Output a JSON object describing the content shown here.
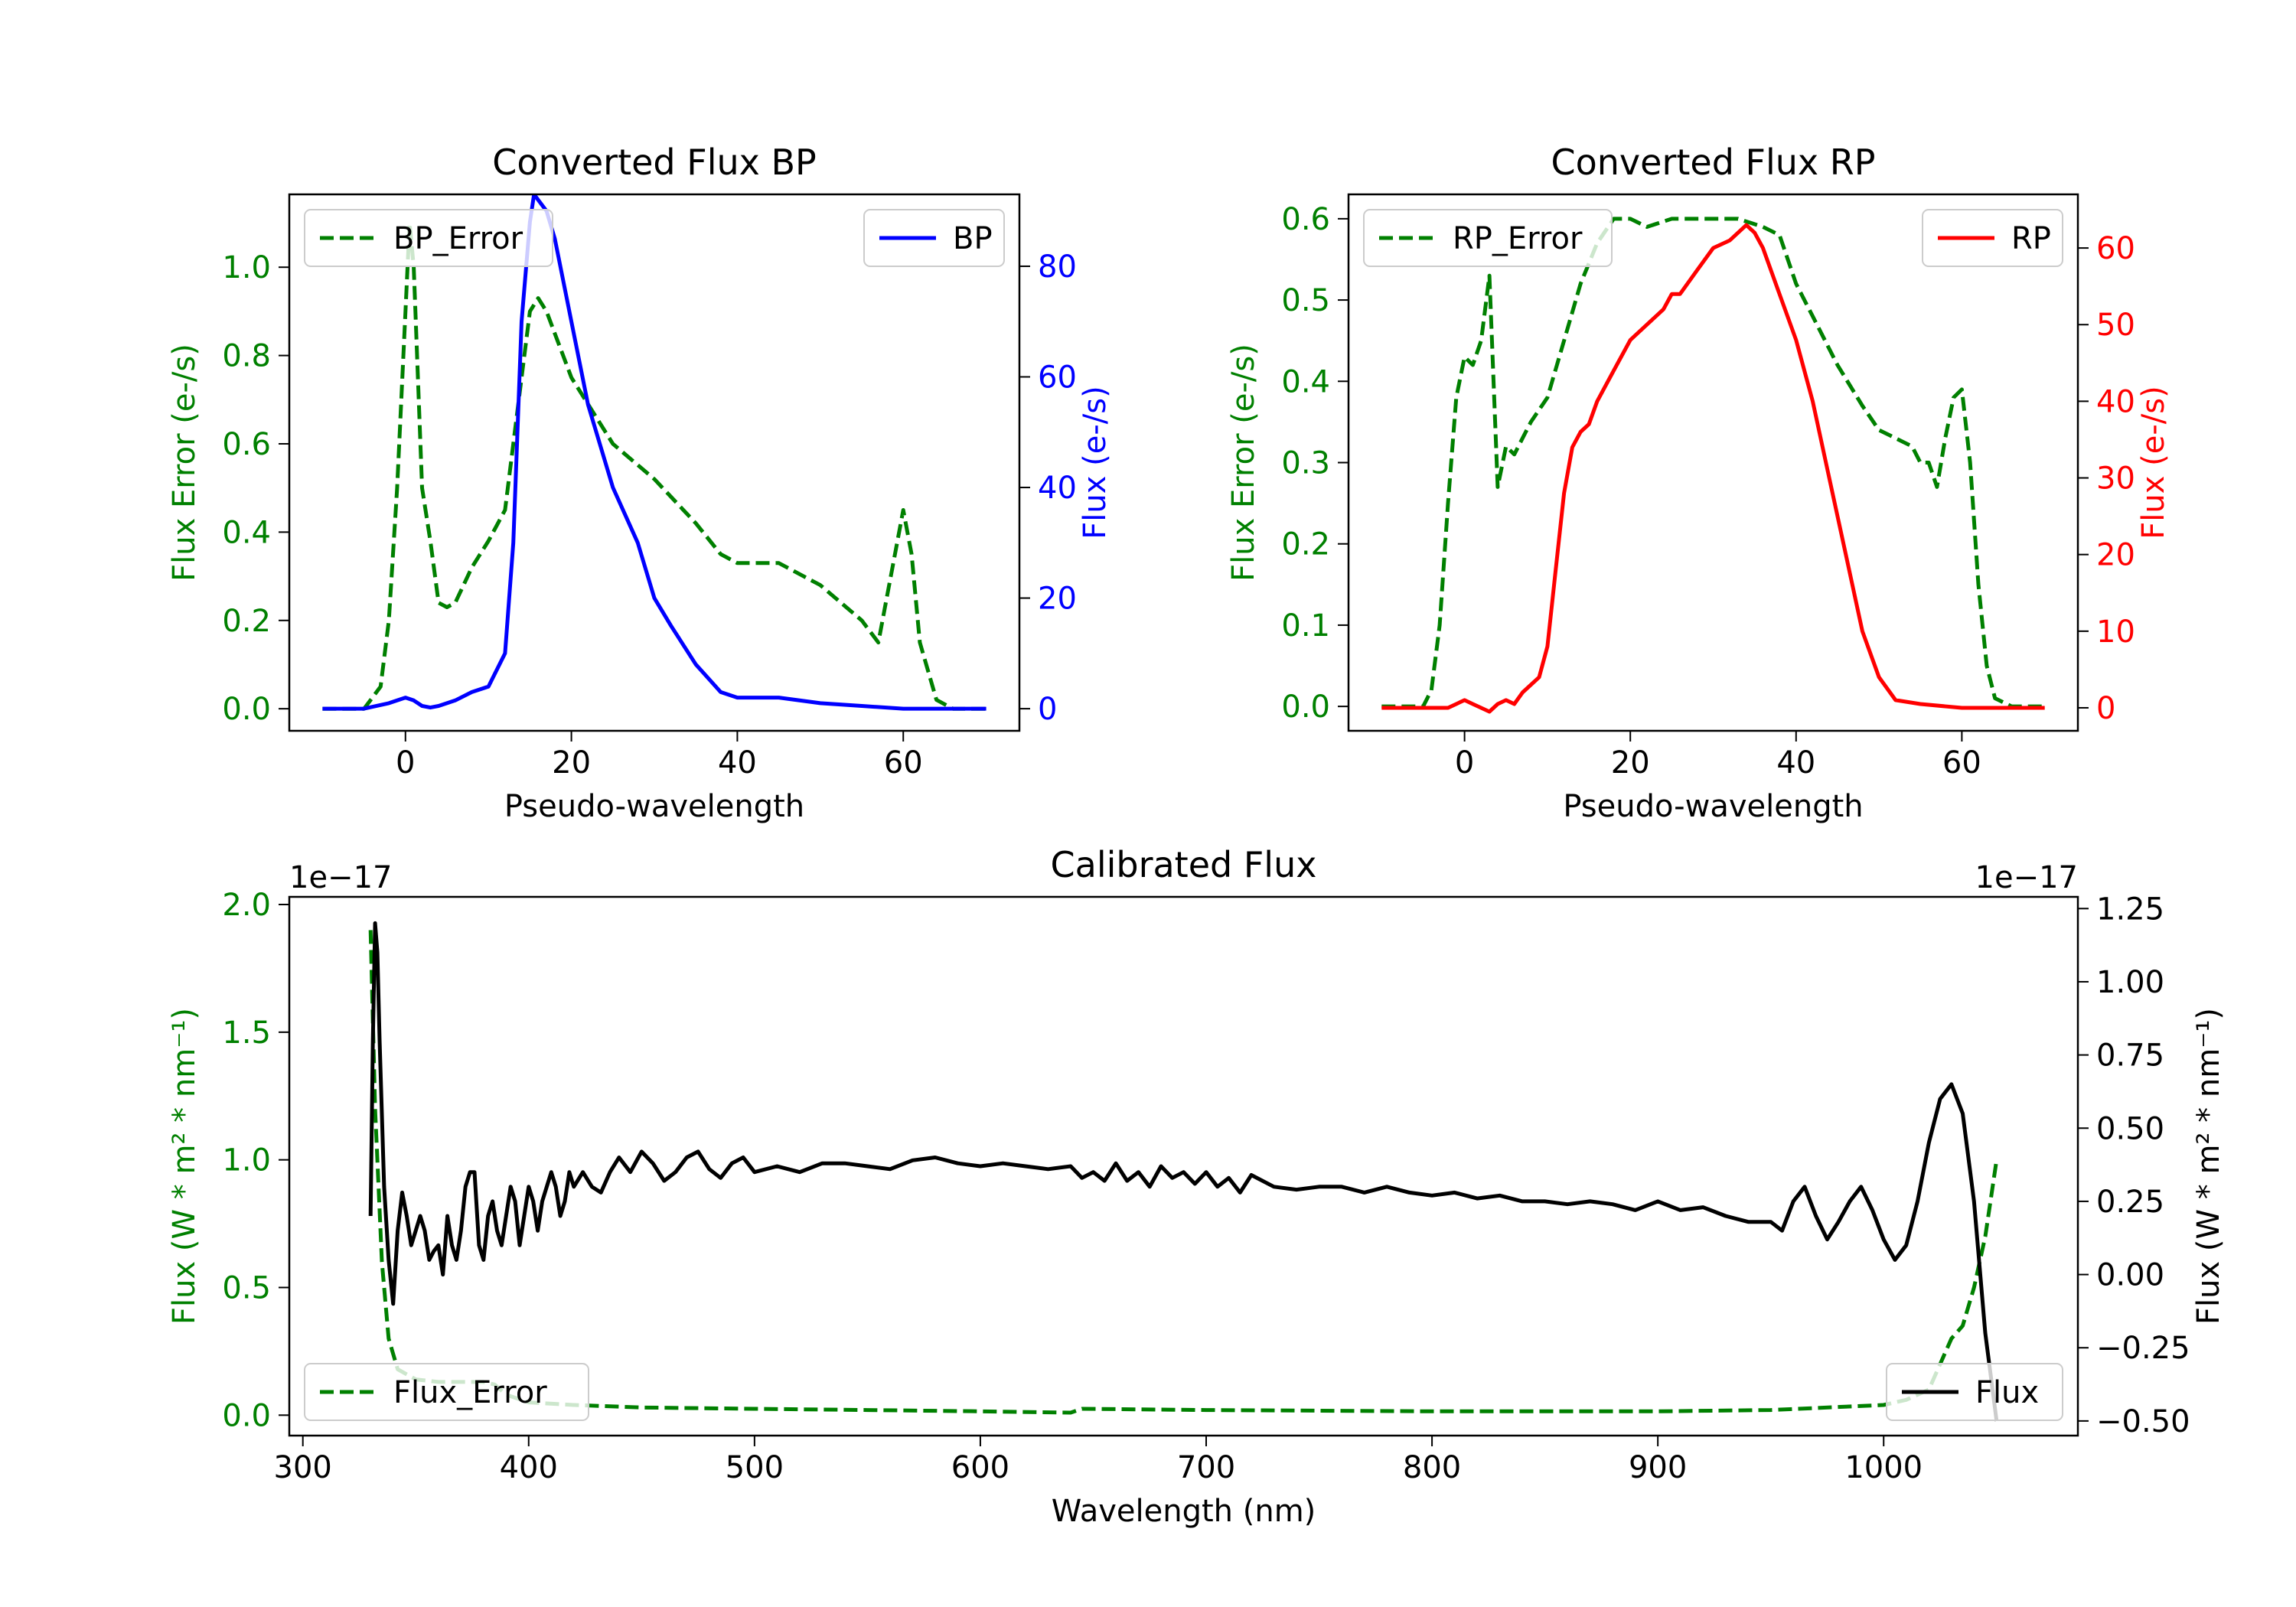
{
  "chart_data": [
    {
      "type": "line",
      "title": "Converted Flux BP",
      "xlabel": "Pseudo-wavelength",
      "ylabel_left": "Flux Error (e-/s)",
      "ylabel_right": "Flux (e-/s)",
      "xlim": [
        -14,
        74
      ],
      "ylim_left": [
        -0.05,
        1.165
      ],
      "ylim_right": [
        -4,
        93
      ],
      "xticks": [
        "0",
        "20",
        "40",
        "60"
      ],
      "yticks_left": [
        "0.0",
        "0.2",
        "0.4",
        "0.6",
        "0.8",
        "1.0"
      ],
      "yticks_right": [
        "0",
        "20",
        "40",
        "60",
        "80"
      ],
      "legend_left_position": "upper left",
      "legend_right_position": "upper right",
      "series": [
        {
          "name": "BP_Error",
          "axis": "left",
          "style": "dashed",
          "color": "#008000",
          "x": [
            -10,
            -5,
            -3,
            -2,
            -1,
            0,
            0.5,
            1,
            2,
            3,
            4,
            5,
            6,
            7,
            8,
            10,
            12,
            14,
            15,
            16,
            17,
            18,
            20,
            22,
            25,
            30,
            35,
            38,
            40,
            45,
            50,
            55,
            57,
            58,
            59,
            60,
            61,
            62,
            64,
            66,
            70
          ],
          "y": [
            0.0,
            0.0,
            0.05,
            0.2,
            0.5,
            0.9,
            1.1,
            1.0,
            0.5,
            0.38,
            0.24,
            0.23,
            0.24,
            0.28,
            0.32,
            0.38,
            0.45,
            0.75,
            0.9,
            0.93,
            0.9,
            0.85,
            0.75,
            0.69,
            0.6,
            0.52,
            0.42,
            0.35,
            0.33,
            0.33,
            0.28,
            0.2,
            0.15,
            0.25,
            0.35,
            0.45,
            0.35,
            0.15,
            0.02,
            0.0,
            0.0
          ]
        },
        {
          "name": "BP",
          "axis": "right",
          "style": "solid",
          "color": "#0000ff",
          "x": [
            -10,
            -5,
            -2,
            0,
            1,
            2,
            3,
            4,
            5,
            6,
            8,
            10,
            12,
            13,
            14,
            15,
            15.5,
            16,
            17,
            18,
            20,
            22,
            25,
            28,
            30,
            32,
            35,
            38,
            40,
            45,
            50,
            55,
            60,
            65,
            70
          ],
          "y": [
            0,
            0,
            1,
            2,
            1.5,
            0.5,
            0.2,
            0.5,
            1,
            1.5,
            3,
            4,
            10,
            30,
            70,
            88,
            93,
            92,
            90,
            85,
            70,
            55,
            40,
            30,
            20,
            15,
            8,
            3,
            2,
            2,
            1,
            0.5,
            0,
            0,
            0
          ]
        }
      ]
    },
    {
      "type": "line",
      "title": "Converted Flux RP",
      "xlabel": "Pseudo-wavelength",
      "ylabel_left": "Flux Error (e-/s)",
      "ylabel_right": "Flux (e-/s)",
      "xlim": [
        -14,
        74
      ],
      "ylim_left": [
        -0.03,
        0.63
      ],
      "ylim_right": [
        -3,
        67
      ],
      "xticks": [
        "0",
        "20",
        "40",
        "60"
      ],
      "yticks_left": [
        "0.0",
        "0.1",
        "0.2",
        "0.3",
        "0.4",
        "0.5",
        "0.6"
      ],
      "yticks_right": [
        "0",
        "10",
        "20",
        "30",
        "40",
        "50",
        "60"
      ],
      "legend_left_position": "upper left",
      "legend_right_position": "upper right",
      "series": [
        {
          "name": "RP_Error",
          "axis": "left",
          "style": "dashed",
          "color": "#008000",
          "x": [
            -10,
            -5,
            -4,
            -3,
            -2,
            -1,
            0,
            1,
            2,
            3,
            4,
            5,
            6,
            7,
            8,
            10,
            12,
            14,
            16,
            18,
            20,
            22,
            25,
            28,
            30,
            33,
            36,
            38,
            40,
            42,
            45,
            48,
            50,
            52,
            54,
            55,
            56,
            57,
            58,
            59,
            60,
            61,
            62,
            63,
            64,
            66,
            70
          ],
          "y": [
            0.0,
            0.0,
            0.02,
            0.1,
            0.25,
            0.38,
            0.43,
            0.42,
            0.45,
            0.53,
            0.27,
            0.32,
            0.31,
            0.33,
            0.35,
            0.38,
            0.45,
            0.52,
            0.57,
            0.6,
            0.6,
            0.59,
            0.6,
            0.6,
            0.6,
            0.6,
            0.59,
            0.58,
            0.52,
            0.48,
            0.42,
            0.37,
            0.34,
            0.33,
            0.32,
            0.3,
            0.3,
            0.27,
            0.33,
            0.38,
            0.39,
            0.3,
            0.15,
            0.05,
            0.01,
            0.0,
            0.0
          ]
        },
        {
          "name": "RP",
          "axis": "right",
          "style": "solid",
          "color": "#ff0000",
          "x": [
            -10,
            -5,
            -2,
            0,
            1,
            2,
            3,
            4,
            5,
            6,
            7,
            8,
            9,
            10,
            11,
            12,
            13,
            14,
            15,
            16,
            18,
            20,
            22,
            24,
            25,
            26,
            28,
            30,
            32,
            33,
            34,
            35,
            36,
            38,
            40,
            42,
            44,
            46,
            48,
            50,
            52,
            55,
            60,
            65,
            70
          ],
          "y": [
            0,
            0,
            0,
            1,
            0.5,
            0,
            -0.5,
            0.5,
            1,
            0.5,
            2,
            3,
            4,
            8,
            18,
            28,
            34,
            36,
            37,
            40,
            44,
            48,
            50,
            52,
            54,
            54,
            57,
            60,
            61,
            62,
            63,
            62,
            60,
            54,
            48,
            40,
            30,
            20,
            10,
            4,
            1,
            0.5,
            0,
            0,
            0
          ]
        }
      ]
    },
    {
      "type": "line",
      "title": "Calibrated Flux",
      "xlabel": "Wavelength (nm)",
      "ylabel_left": "Flux (W * m² * nm⁻¹)",
      "ylabel_right": "Flux (W * m² * nm⁻¹)",
      "offset_left": "1e−17",
      "offset_right": "1e−17",
      "xlim": [
        294,
        1086
      ],
      "ylim_left": [
        -0.08,
        2.03
      ],
      "ylim_right": [
        -0.55,
        1.29
      ],
      "xticks": [
        "300",
        "400",
        "500",
        "600",
        "700",
        "800",
        "900",
        "1000"
      ],
      "yticks_left": [
        "0.0",
        "0.5",
        "1.0",
        "1.5",
        "2.0"
      ],
      "yticks_right": [
        "−0.50",
        "−0.25",
        "0.00",
        "0.25",
        "0.50",
        "0.75",
        "1.00",
        "1.25"
      ],
      "legend_left_position": "lower left",
      "legend_right_position": "lower right",
      "series": [
        {
          "name": "Flux_Error",
          "axis": "left",
          "style": "dashed",
          "color": "#008000",
          "x": [
            330,
            332,
            335,
            338,
            342,
            350,
            360,
            370,
            380,
            385,
            390,
            400,
            420,
            450,
            500,
            550,
            600,
            640,
            645,
            700,
            800,
            900,
            950,
            1000,
            1010,
            1020,
            1025,
            1030,
            1035,
            1040,
            1045,
            1050
          ],
          "y": [
            1.9,
            1.2,
            0.6,
            0.3,
            0.18,
            0.14,
            0.13,
            0.13,
            0.13,
            0.12,
            0.08,
            0.05,
            0.04,
            0.03,
            0.025,
            0.02,
            0.015,
            0.01,
            0.025,
            0.02,
            0.015,
            0.015,
            0.02,
            0.04,
            0.06,
            0.1,
            0.2,
            0.3,
            0.35,
            0.5,
            0.7,
            1.0
          ]
        },
        {
          "name": "Flux",
          "axis": "right",
          "style": "solid",
          "color": "#000000",
          "x": [
            330,
            331,
            332,
            333,
            334,
            336,
            338,
            340,
            342,
            344,
            346,
            348,
            350,
            352,
            354,
            356,
            358,
            360,
            362,
            364,
            366,
            368,
            370,
            372,
            374,
            376,
            378,
            380,
            382,
            384,
            386,
            388,
            390,
            392,
            394,
            396,
            398,
            400,
            402,
            404,
            406,
            408,
            410,
            412,
            414,
            416,
            418,
            420,
            424,
            428,
            432,
            436,
            440,
            445,
            450,
            455,
            460,
            465,
            470,
            475,
            480,
            485,
            490,
            495,
            500,
            510,
            520,
            530,
            540,
            550,
            560,
            570,
            580,
            590,
            600,
            610,
            620,
            630,
            640,
            645,
            650,
            655,
            660,
            665,
            670,
            675,
            680,
            685,
            690,
            695,
            700,
            705,
            710,
            715,
            720,
            730,
            740,
            750,
            760,
            770,
            780,
            790,
            800,
            810,
            820,
            830,
            840,
            850,
            860,
            870,
            880,
            890,
            900,
            910,
            920,
            930,
            940,
            950,
            955,
            960,
            965,
            970,
            975,
            980,
            985,
            990,
            995,
            1000,
            1005,
            1010,
            1015,
            1020,
            1025,
            1030,
            1035,
            1040,
            1045,
            1050
          ],
          "y": [
            0.2,
            0.8,
            1.2,
            1.1,
            0.8,
            0.3,
            0.05,
            -0.1,
            0.15,
            0.28,
            0.2,
            0.1,
            0.15,
            0.2,
            0.15,
            0.05,
            0.08,
            0.1,
            0.0,
            0.2,
            0.1,
            0.05,
            0.15,
            0.3,
            0.35,
            0.35,
            0.1,
            0.05,
            0.2,
            0.25,
            0.15,
            0.1,
            0.2,
            0.3,
            0.25,
            0.1,
            0.2,
            0.3,
            0.25,
            0.15,
            0.25,
            0.3,
            0.35,
            0.3,
            0.2,
            0.25,
            0.35,
            0.3,
            0.35,
            0.3,
            0.28,
            0.35,
            0.4,
            0.35,
            0.42,
            0.38,
            0.32,
            0.35,
            0.4,
            0.42,
            0.36,
            0.33,
            0.38,
            0.4,
            0.35,
            0.37,
            0.35,
            0.38,
            0.38,
            0.37,
            0.36,
            0.39,
            0.4,
            0.38,
            0.37,
            0.38,
            0.37,
            0.36,
            0.37,
            0.33,
            0.35,
            0.32,
            0.38,
            0.32,
            0.35,
            0.3,
            0.37,
            0.33,
            0.35,
            0.31,
            0.35,
            0.3,
            0.33,
            0.28,
            0.34,
            0.3,
            0.29,
            0.3,
            0.3,
            0.28,
            0.3,
            0.28,
            0.27,
            0.28,
            0.26,
            0.27,
            0.25,
            0.25,
            0.24,
            0.25,
            0.24,
            0.22,
            0.25,
            0.22,
            0.23,
            0.2,
            0.18,
            0.18,
            0.15,
            0.25,
            0.3,
            0.2,
            0.12,
            0.18,
            0.25,
            0.3,
            0.22,
            0.12,
            0.05,
            0.1,
            0.25,
            0.45,
            0.6,
            0.65,
            0.55,
            0.25,
            -0.2,
            -0.5
          ]
        }
      ]
    }
  ]
}
